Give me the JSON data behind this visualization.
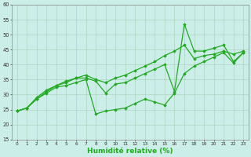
{
  "xlabel": "Humidité relative (%)",
  "bg_color": "#cceee8",
  "grid_color": "#aaccbb",
  "line_color": "#22aa22",
  "xlim": [
    -0.5,
    23.5
  ],
  "ylim": [
    15,
    60
  ],
  "yticks": [
    15,
    20,
    25,
    30,
    35,
    40,
    45,
    50,
    55,
    60
  ],
  "xticks": [
    0,
    1,
    2,
    3,
    4,
    5,
    6,
    7,
    8,
    9,
    10,
    11,
    12,
    13,
    14,
    15,
    16,
    17,
    18,
    19,
    20,
    21,
    22,
    23
  ],
  "series": [
    [
      24.5,
      25.5,
      29.0,
      31.5,
      33.0,
      34.5,
      35.5,
      36.5,
      35.0,
      34.0,
      35.5,
      36.5,
      38.0,
      39.5,
      41.0,
      43.0,
      44.5,
      46.5,
      42.0,
      43.0,
      43.5,
      44.5,
      43.5,
      44.5
    ],
    [
      24.5,
      25.5,
      28.5,
      31.0,
      33.0,
      34.0,
      35.5,
      35.5,
      34.5,
      30.5,
      33.5,
      34.0,
      35.5,
      37.0,
      38.5,
      40.0,
      31.0,
      53.5,
      44.5,
      44.5,
      45.5,
      46.5,
      41.0,
      44.0
    ],
    [
      24.5,
      25.5,
      28.5,
      30.5,
      32.5,
      33.0,
      34.0,
      35.0,
      23.5,
      24.5,
      25.0,
      25.5,
      27.0,
      28.5,
      27.5,
      26.5,
      30.5,
      37.0,
      39.5,
      41.0,
      42.5,
      44.0,
      40.5,
      44.0
    ]
  ]
}
